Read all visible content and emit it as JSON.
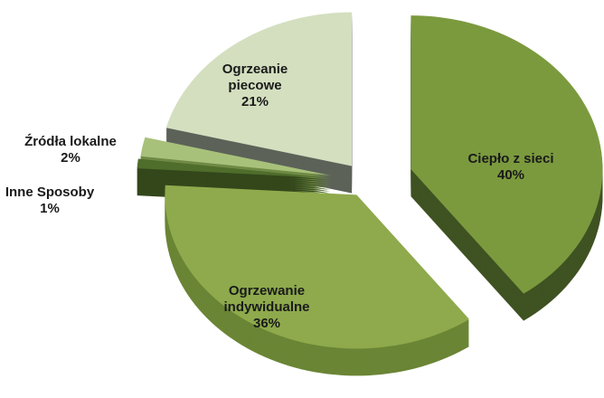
{
  "chart_data": {
    "type": "pie",
    "categories": [
      "Ciepło z sieci",
      "Ogrzewanie indywidualne",
      "Inne Sposoby",
      "Źródła lokalne",
      "Ogrzeanie piecowe"
    ],
    "values": [
      40,
      36,
      1,
      2,
      21
    ],
    "value_labels": [
      "40%",
      "36%",
      "1%",
      "2%",
      "21%"
    ],
    "colors": [
      "#7b9a3e",
      "#8eaa4c",
      "#4f6d2b",
      "#a8c17a",
      "#d3dfbf"
    ]
  }
}
